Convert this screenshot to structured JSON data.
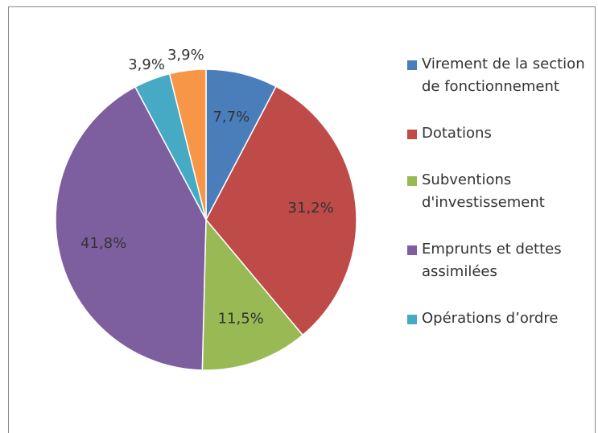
{
  "chart_data": {
    "type": "pie",
    "categories": [
      "Virement de la section de fonctionnement",
      "Dotations",
      "Subventions d'investissement",
      "Emprunts et dettes assimilées",
      "Opérations d’ordre",
      null
    ],
    "values": [
      7.7,
      31.2,
      11.5,
      41.8,
      3.9,
      3.9
    ],
    "value_labels": [
      "7,7%",
      "31,2%",
      "11,5%",
      "41,8%",
      "3,9%",
      "3,9%"
    ],
    "colors": [
      "#4a7ebb",
      "#be4b48",
      "#98b954",
      "#7d5fa0",
      "#46aac5",
      "#f79646"
    ],
    "legend": "right"
  }
}
